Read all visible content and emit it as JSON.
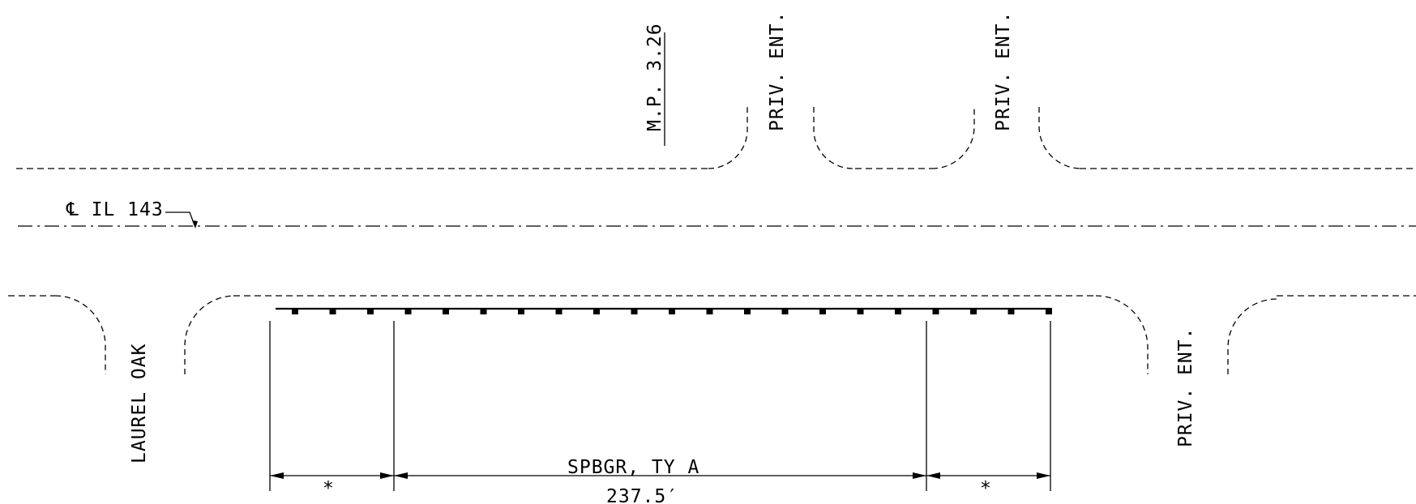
{
  "labels": {
    "milepost": "M.P. 3.26",
    "priv_ent_1": "PRIV. ENT.",
    "priv_ent_2": "PRIV. ENT.",
    "priv_ent_3": "PRIV. ENT.",
    "centerline": "℄ IL 143",
    "side_road": "LAUREL OAK",
    "guardrail_type": "SPBGR, TY A",
    "guardrail_length": "237.5′",
    "left_dim": "*",
    "right_dim": "*"
  },
  "guardrail": {
    "post_count": 21
  }
}
